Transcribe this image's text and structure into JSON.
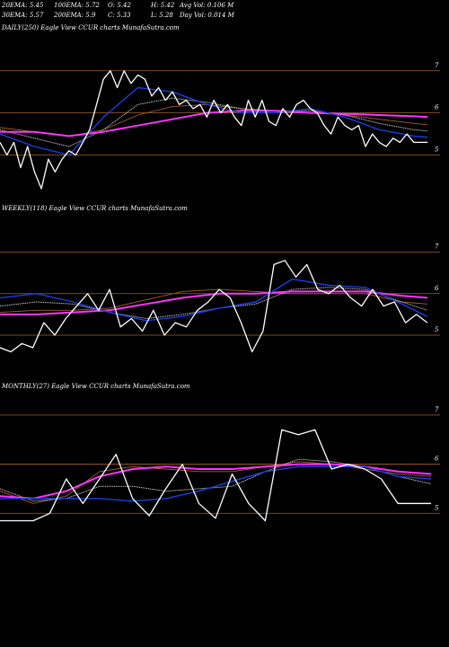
{
  "header": {
    "ema20": "20EMA: 5.45",
    "ema100": "100EMA: 5.72",
    "open": "O: 5.42",
    "high": "H: 5.42",
    "avg_vol": "Avg Vol: 0.106  M",
    "ema30": "30EMA: 5.57",
    "ema200": "200EMA: 5.9",
    "close": "C: 5.33",
    "low": "L: 5.28",
    "day_vol": "Day Vol: 0.014  M"
  },
  "colors": {
    "background": "#000000",
    "price": "#ffffff",
    "ema_fast": "#1a3fe0",
    "ema_slow": "#ff33ff",
    "ema_mid": "#c9c9c9",
    "ema_brown": "#a0602a",
    "gridline": "#a0602a",
    "text": "#ffffff"
  },
  "chart_data": [
    {
      "type": "line",
      "title": "DAILY(250) Eagle   View  CCUR charts MunafaSutra.com",
      "yticks": [
        7,
        6,
        5
      ],
      "ylim": [
        4.2,
        7.4
      ],
      "gridlines": [
        7,
        6,
        5
      ],
      "xlim": [
        0,
        250
      ],
      "grid": true,
      "series": [
        {
          "role": "price",
          "color": "#ffffff",
          "x": [
            0,
            4,
            8,
            12,
            16,
            20,
            24,
            28,
            32,
            36,
            40,
            44,
            48,
            52,
            56,
            60,
            64,
            68,
            72,
            76,
            80,
            84,
            88,
            92,
            96,
            100,
            104,
            108,
            112,
            116,
            120,
            124,
            128,
            132,
            136,
            140,
            144,
            148,
            152,
            156,
            160,
            164,
            168,
            172,
            176,
            180,
            184,
            188,
            192,
            196,
            200,
            204,
            208,
            212,
            216,
            220,
            224,
            228,
            232,
            236,
            240,
            244,
            248
          ],
          "y": [
            5.3,
            5.0,
            5.3,
            4.7,
            5.2,
            4.6,
            4.2,
            4.9,
            4.6,
            4.9,
            5.1,
            5.0,
            5.3,
            5.6,
            6.2,
            6.8,
            7.0,
            6.6,
            7.0,
            6.7,
            6.9,
            6.8,
            6.4,
            6.6,
            6.3,
            6.5,
            6.2,
            6.3,
            6.1,
            6.2,
            5.9,
            6.3,
            6.0,
            6.2,
            5.9,
            5.7,
            6.3,
            5.9,
            6.3,
            5.8,
            5.7,
            6.1,
            5.9,
            6.2,
            6.3,
            6.1,
            6.0,
            5.7,
            5.5,
            5.9,
            5.7,
            5.6,
            5.7,
            5.2,
            5.5,
            5.3,
            5.2,
            5.4,
            5.3,
            5.5,
            5.3,
            5.3,
            5.3
          ]
        },
        {
          "role": "ema_fast",
          "color": "#1a3fe0",
          "x": [
            0,
            20,
            40,
            60,
            80,
            100,
            120,
            140,
            160,
            180,
            200,
            220,
            240,
            248
          ],
          "y": [
            5.5,
            5.2,
            5.0,
            5.9,
            6.6,
            6.5,
            6.2,
            6.0,
            6.0,
            6.1,
            5.9,
            5.6,
            5.45,
            5.42
          ]
        },
        {
          "role": "ema_mid",
          "color": "#c9c9c9",
          "x": [
            0,
            20,
            40,
            60,
            80,
            100,
            120,
            140,
            160,
            180,
            200,
            220,
            240,
            248
          ],
          "y": [
            5.6,
            5.4,
            5.2,
            5.6,
            6.2,
            6.35,
            6.25,
            6.1,
            6.05,
            6.05,
            5.95,
            5.75,
            5.6,
            5.57
          ]
        },
        {
          "role": "ema_brown",
          "color": "#a0602a",
          "x": [
            0,
            20,
            40,
            60,
            80,
            100,
            120,
            140,
            160,
            180,
            200,
            220,
            240,
            248
          ],
          "y": [
            5.65,
            5.55,
            5.45,
            5.6,
            5.95,
            6.15,
            6.2,
            6.1,
            6.05,
            6.0,
            5.95,
            5.85,
            5.75,
            5.72
          ]
        },
        {
          "role": "ema_slow",
          "color": "#ff33ff",
          "x": [
            0,
            20,
            40,
            60,
            80,
            100,
            120,
            140,
            160,
            180,
            200,
            220,
            240,
            248
          ],
          "y": [
            5.55,
            5.55,
            5.45,
            5.55,
            5.7,
            5.85,
            6.0,
            6.05,
            6.05,
            6.0,
            5.98,
            5.95,
            5.92,
            5.9
          ]
        }
      ]
    },
    {
      "type": "line",
      "title": "WEEKLY(118) Eagle   View  CCUR charts MunafaSutra.com",
      "yticks": [
        7,
        6,
        5
      ],
      "ylim": [
        4.2,
        7.4
      ],
      "gridlines": [
        7,
        6,
        5
      ],
      "xlim": [
        0,
        118
      ],
      "grid": true,
      "series": [
        {
          "role": "price",
          "color": "#ffffff",
          "x": [
            0,
            3,
            6,
            9,
            12,
            15,
            18,
            21,
            24,
            27,
            30,
            33,
            36,
            39,
            42,
            45,
            48,
            51,
            54,
            57,
            60,
            63,
            66,
            69,
            72,
            75,
            78,
            81,
            84,
            87,
            90,
            93,
            96,
            99,
            102,
            105,
            108,
            111,
            114,
            117
          ],
          "y": [
            4.7,
            4.6,
            4.8,
            4.7,
            5.3,
            5.0,
            5.4,
            5.7,
            6.0,
            5.6,
            6.1,
            5.2,
            5.4,
            5.1,
            5.6,
            5.0,
            5.3,
            5.2,
            5.6,
            5.8,
            6.1,
            5.9,
            5.3,
            4.6,
            5.1,
            6.7,
            6.8,
            6.4,
            6.7,
            6.1,
            6.0,
            6.2,
            5.9,
            5.7,
            6.1,
            5.7,
            5.8,
            5.3,
            5.5,
            5.3
          ]
        },
        {
          "role": "ema_fast",
          "color": "#1a3fe0",
          "x": [
            0,
            10,
            20,
            30,
            40,
            50,
            60,
            70,
            80,
            90,
            100,
            110,
            117
          ],
          "y": [
            5.9,
            6.0,
            5.8,
            5.55,
            5.35,
            5.45,
            5.65,
            5.8,
            6.35,
            6.2,
            6.15,
            5.75,
            5.45
          ]
        },
        {
          "role": "ema_mid",
          "color": "#c9c9c9",
          "x": [
            0,
            10,
            20,
            30,
            40,
            50,
            60,
            70,
            80,
            90,
            100,
            110,
            117
          ],
          "y": [
            5.7,
            5.8,
            5.75,
            5.55,
            5.4,
            5.5,
            5.65,
            5.75,
            6.1,
            6.15,
            6.1,
            5.8,
            5.6
          ]
        },
        {
          "role": "ema_brown",
          "color": "#a0602a",
          "x": [
            0,
            10,
            20,
            30,
            40,
            50,
            60,
            70,
            80,
            90,
            100,
            110,
            117
          ],
          "y": [
            5.55,
            5.6,
            5.6,
            5.65,
            5.85,
            6.05,
            6.1,
            6.05,
            6.0,
            6.0,
            6.0,
            5.8,
            5.75
          ]
        },
        {
          "role": "ema_slow",
          "color": "#ff33ff",
          "x": [
            0,
            10,
            20,
            30,
            40,
            50,
            60,
            70,
            80,
            90,
            100,
            110,
            117
          ],
          "y": [
            5.5,
            5.5,
            5.55,
            5.6,
            5.75,
            5.9,
            6.0,
            6.0,
            6.05,
            6.05,
            6.05,
            5.95,
            5.9
          ]
        }
      ]
    },
    {
      "type": "line",
      "title": "MONTHLY(27) Eagle   View  CCUR charts MunafaSutra.com",
      "yticks": [
        7,
        6,
        5
      ],
      "ylim": [
        4.2,
        7.4
      ],
      "gridlines": [
        7,
        6,
        5
      ],
      "xlim": [
        0,
        26
      ],
      "grid": true,
      "series": [
        {
          "role": "price",
          "color": "#ffffff",
          "x": [
            0,
            1,
            2,
            3,
            4,
            5,
            6,
            7,
            8,
            9,
            10,
            11,
            12,
            13,
            14,
            15,
            16,
            17,
            18,
            19,
            20,
            21,
            22,
            23,
            24,
            25,
            26
          ],
          "y": [
            4.85,
            4.85,
            4.85,
            5.0,
            5.7,
            5.2,
            5.7,
            6.2,
            5.3,
            4.95,
            5.5,
            6.0,
            5.2,
            4.9,
            5.8,
            5.2,
            4.85,
            6.7,
            6.6,
            6.7,
            5.9,
            6.0,
            5.9,
            5.7,
            5.2,
            5.2,
            5.2
          ]
        },
        {
          "role": "ema_fast",
          "color": "#1a3fe0",
          "x": [
            0,
            2,
            4,
            6,
            8,
            10,
            12,
            14,
            16,
            18,
            20,
            22,
            24,
            26
          ],
          "y": [
            5.3,
            5.3,
            5.3,
            5.3,
            5.25,
            5.3,
            5.45,
            5.65,
            5.85,
            5.95,
            5.95,
            5.95,
            5.75,
            5.7
          ]
        },
        {
          "role": "ema_mid",
          "color": "#c9c9c9",
          "x": [
            0,
            2,
            4,
            6,
            8,
            10,
            12,
            14,
            16,
            18,
            20,
            22,
            24,
            26
          ],
          "y": [
            5.5,
            5.25,
            5.3,
            5.55,
            5.55,
            5.45,
            5.5,
            5.55,
            5.85,
            6.1,
            6.05,
            5.95,
            5.75,
            5.6
          ]
        },
        {
          "role": "ema_brown",
          "color": "#a0602a",
          "x": [
            0,
            2,
            4,
            6,
            8,
            10,
            12,
            14,
            16,
            18,
            20,
            22,
            24,
            26
          ],
          "y": [
            5.45,
            5.2,
            5.35,
            5.85,
            5.95,
            5.9,
            5.85,
            5.85,
            5.95,
            6.05,
            6.0,
            5.9,
            5.8,
            5.75
          ]
        },
        {
          "role": "ema_slow",
          "color": "#ff33ff",
          "x": [
            0,
            2,
            4,
            6,
            8,
            10,
            12,
            14,
            16,
            18,
            20,
            22,
            24,
            26
          ],
          "y": [
            5.35,
            5.3,
            5.45,
            5.75,
            5.9,
            5.95,
            5.9,
            5.9,
            5.95,
            6.0,
            6.0,
            5.95,
            5.85,
            5.8
          ]
        }
      ]
    }
  ]
}
